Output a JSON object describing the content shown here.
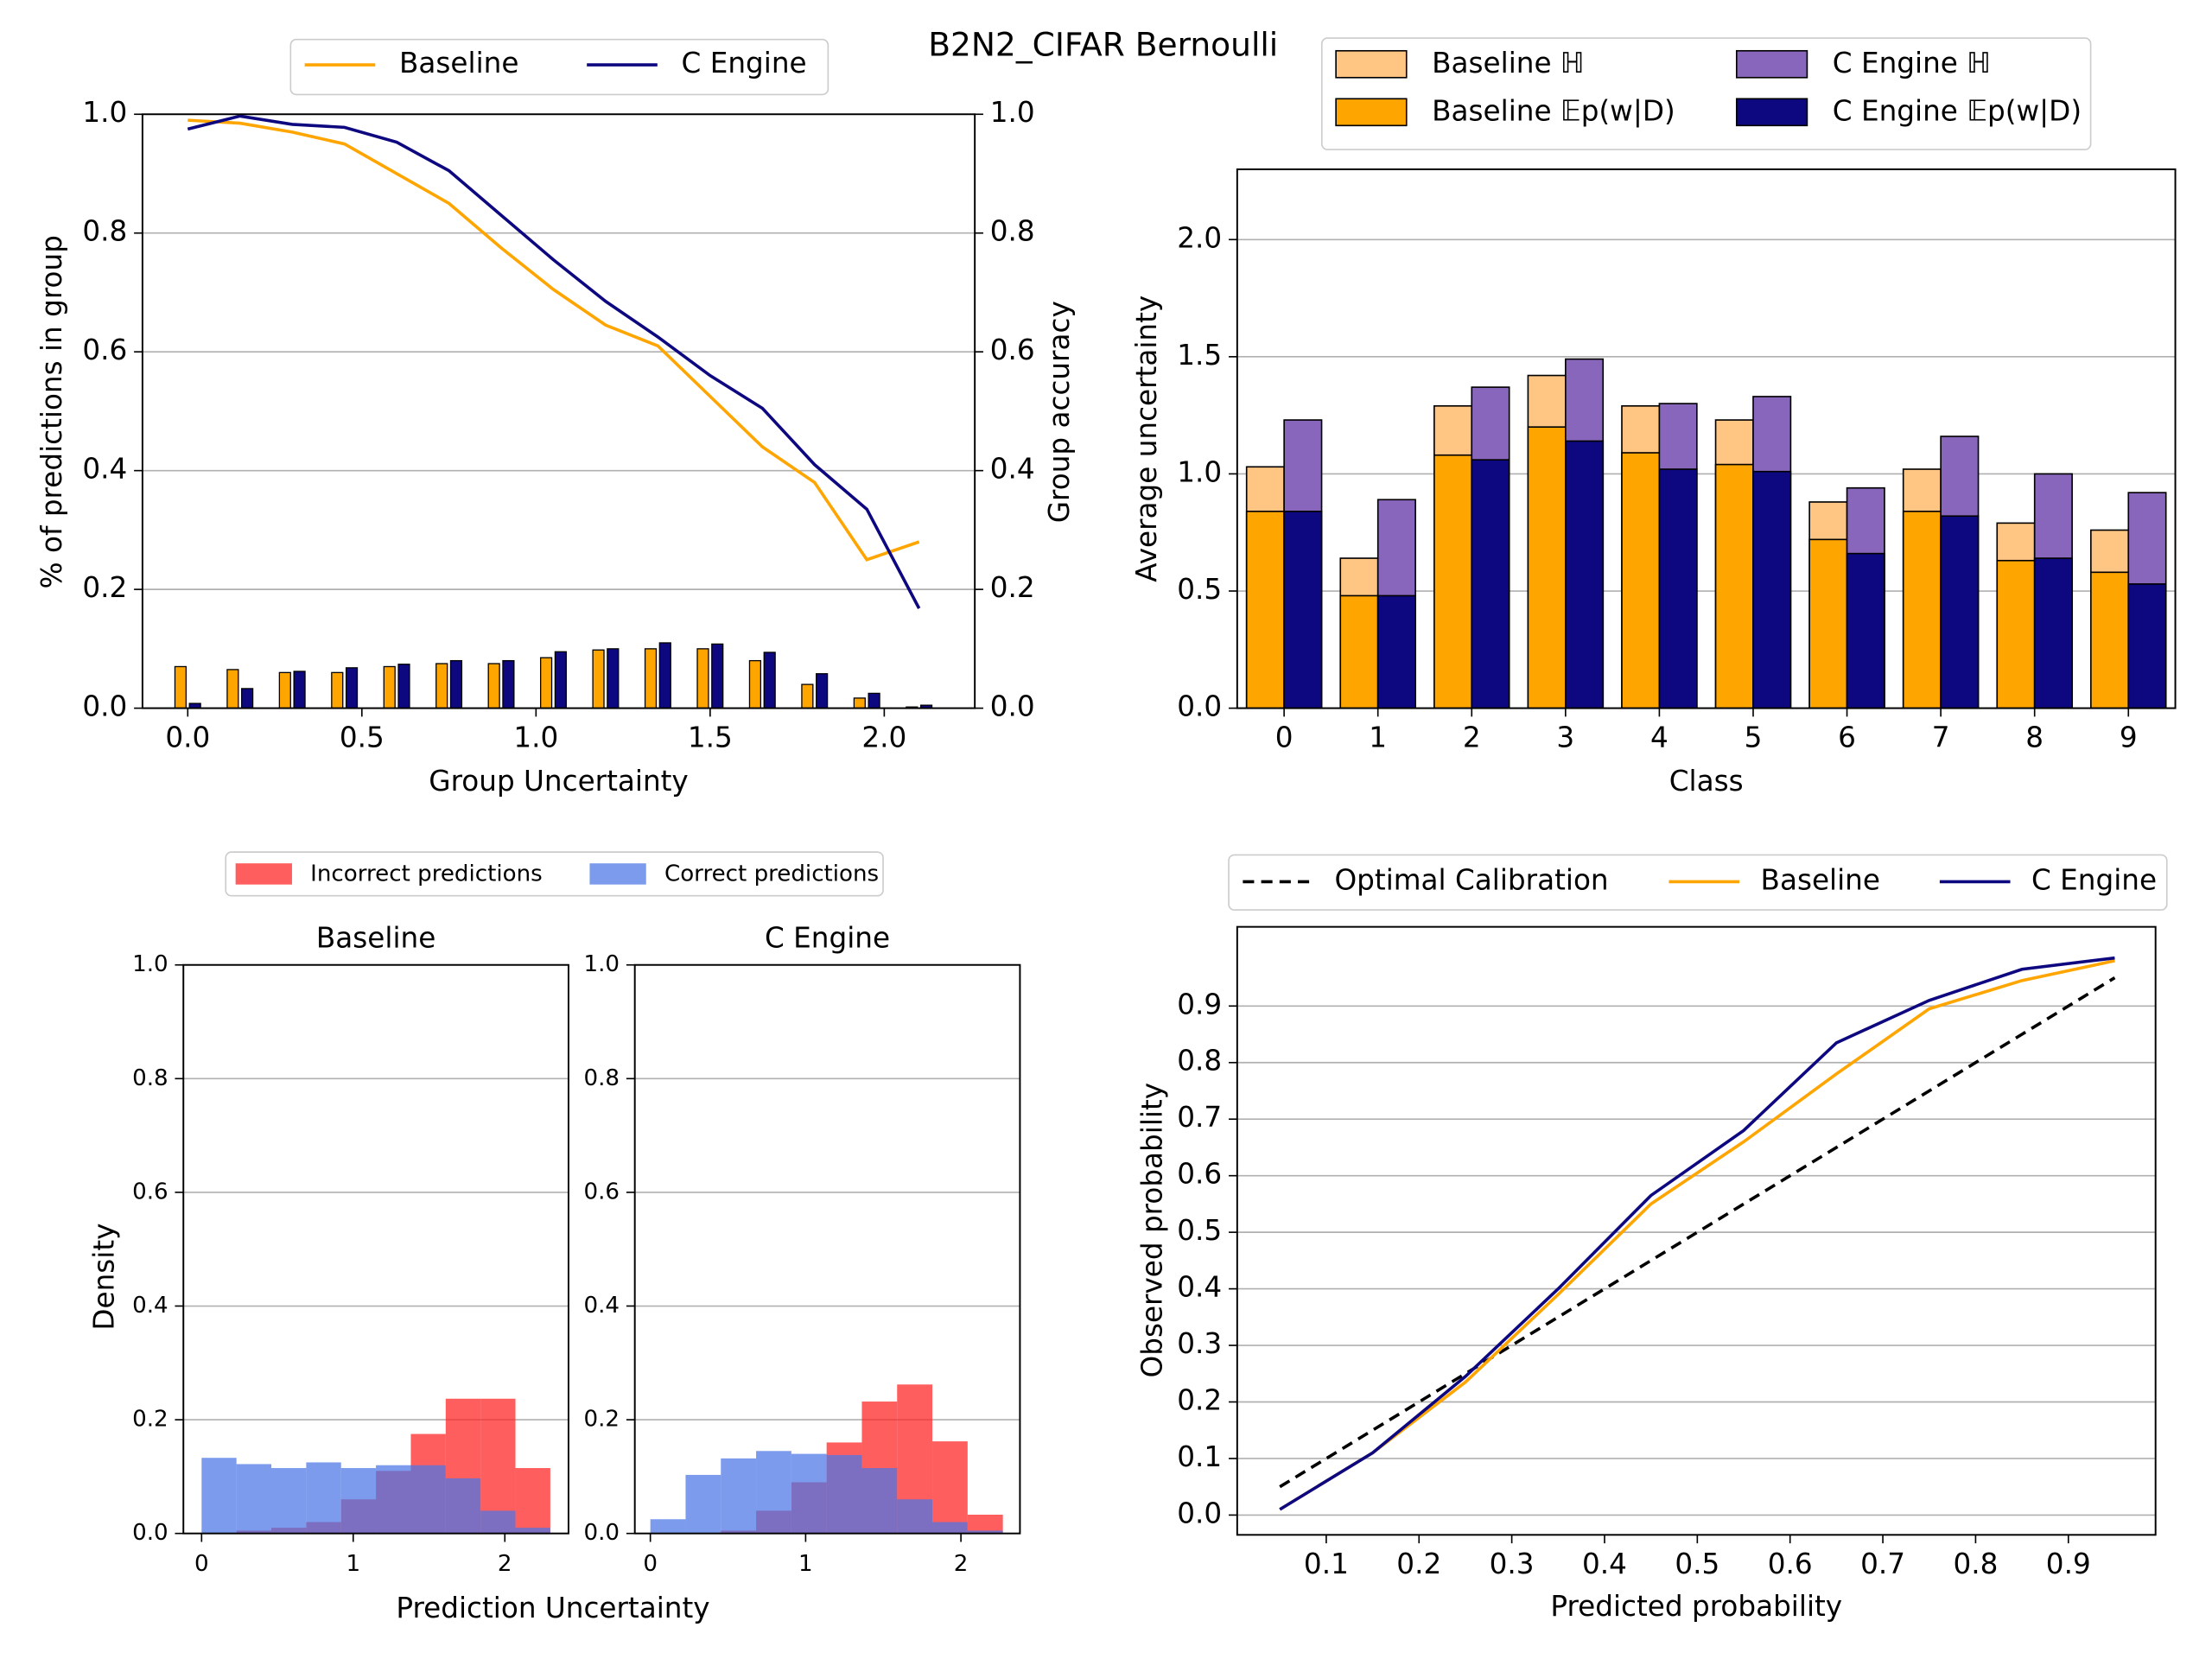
{
  "title": "B2N2_CIFAR Bernoulli",
  "chart_data": [
    {
      "type": "line-bar",
      "xlabel": "Group Uncertainty",
      "ylabel": "% of predictions in group",
      "y2label": "Group accuracy",
      "x": [
        0,
        0.15,
        0.3,
        0.45,
        0.6,
        0.75,
        0.9,
        1.05,
        1.2,
        1.35,
        1.5,
        1.65,
        1.8,
        1.95,
        2.1
      ],
      "xlim": [
        -0.13,
        2.26
      ],
      "xticks": [
        {
          "value": 0,
          "label": "0.0"
        },
        0.5,
        {
          "value": 1,
          "label": "1.0"
        },
        1.5,
        {
          "value": 2,
          "label": "2.0"
        }
      ],
      "ylim": [
        0,
        1
      ],
      "yticks": [
        {
          "value": 0,
          "label": "0.0"
        },
        0.2,
        0.4,
        0.6,
        0.8,
        {
          "value": 1,
          "label": "1.0"
        }
      ],
      "y2lim": [
        0,
        1
      ],
      "y2ticks": [
        {
          "value": 0,
          "label": "0.0"
        },
        0.2,
        0.4,
        0.6,
        0.8,
        {
          "value": 1,
          "label": "1.0"
        }
      ],
      "grid": true,
      "legend": "upper center",
      "series": [
        {
          "name": "Baseline",
          "kind": "line",
          "axis": "y2",
          "color": "#ffa500",
          "values": [
            0.99,
            0.985,
            0.97,
            0.95,
            0.9,
            0.85,
            0.775,
            0.705,
            0.645,
            0.61,
            0.525,
            0.44,
            0.38,
            0.25,
            0.28
          ]
        },
        {
          "name": "C Engine",
          "kind": "line",
          "axis": "y2",
          "color": "#0e0880",
          "values": [
            0.975,
            0.997,
            0.983,
            0.978,
            0.953,
            0.905,
            0.83,
            0.755,
            0.685,
            0.625,
            0.56,
            0.505,
            0.41,
            0.335,
            0.168
          ]
        },
        {
          "name": "Baseline",
          "kind": "bar",
          "color": "#ffa500",
          "values": [
            0.07,
            0.065,
            0.06,
            0.06,
            0.07,
            0.075,
            0.075,
            0.085,
            0.098,
            0.1,
            0.1,
            0.08,
            0.04,
            0.017,
            0.002
          ]
        },
        {
          "name": "C Engine",
          "kind": "bar",
          "color": "#0e0880",
          "values": [
            0.008,
            0.033,
            0.062,
            0.068,
            0.074,
            0.08,
            0.08,
            0.095,
            0.1,
            0.11,
            0.108,
            0.094,
            0.058,
            0.025,
            0.005
          ]
        }
      ]
    },
    {
      "type": "overlay-bar",
      "xlabel": "Class",
      "ylabel": "Average uncertainty",
      "categories": [
        "0",
        "1",
        "2",
        "3",
        "4",
        "5",
        "6",
        "7",
        "8",
        "9"
      ],
      "ylim": [
        0,
        2.3
      ],
      "yticks": [
        {
          "value": 0,
          "label": "0.0"
        },
        0.5,
        {
          "value": 1,
          "label": "1.0"
        },
        1.5,
        {
          "value": 2,
          "label": "2.0"
        }
      ],
      "grid": true,
      "legend": "upper right",
      "series": [
        {
          "name": "Baseline ℍ",
          "group": 0,
          "color": "#ffc583",
          "values": [
            1.03,
            0.64,
            1.29,
            1.42,
            1.29,
            1.23,
            0.88,
            1.02,
            0.79,
            0.76
          ]
        },
        {
          "name": "Baseline 𝔼p(w|D)",
          "group": 0,
          "color": "#ffa500",
          "values": [
            0.84,
            0.48,
            1.08,
            1.2,
            1.09,
            1.04,
            0.72,
            0.84,
            0.63,
            0.58
          ]
        },
        {
          "name": "C Engine ℍ",
          "group": 1,
          "color": "#8866bb",
          "values": [
            1.23,
            0.89,
            1.37,
            1.49,
            1.3,
            1.33,
            0.94,
            1.16,
            1.0,
            0.92
          ]
        },
        {
          "name": "C Engine 𝔼p(w|D)",
          "group": 1,
          "color": "#0e0880",
          "values": [
            0.84,
            0.48,
            1.06,
            1.14,
            1.02,
            1.01,
            0.66,
            0.82,
            0.64,
            0.53
          ]
        }
      ]
    },
    {
      "type": "histogram",
      "xlabel": "Prediction Uncertainty",
      "ylabel": "Density",
      "alpha": 0.72,
      "grid": true,
      "legend": "upper center",
      "series": [
        {
          "name": "Incorrect predictions",
          "color": "#ff2020"
        },
        {
          "name": "Correct predictions",
          "color": "#4a74e6"
        }
      ],
      "ylim": [
        0,
        1
      ],
      "yticks": [
        {
          "value": 0,
          "label": "0.0"
        },
        0.2,
        0.4,
        0.6,
        0.8,
        {
          "value": 1,
          "label": "1.0"
        }
      ],
      "panels": [
        {
          "title": "Baseline",
          "xlim": [
            -0.12,
            2.42
          ],
          "xticks": [
            0,
            1,
            2
          ],
          "bins": [
            0,
            0.23,
            0.46,
            0.69,
            0.92,
            1.15,
            1.38,
            1.61,
            1.84,
            2.07,
            2.3
          ],
          "values": [
            [
              0,
              0.005,
              0.01,
              0.02,
              0.06,
              0.11,
              0.175,
              0.237,
              0.237,
              0.115,
              0.018
            ],
            [
              0.133,
              0.122,
              0.115,
              0.125,
              0.115,
              0.12,
              0.12,
              0.097,
              0.04,
              0.01,
              0
            ]
          ]
        },
        {
          "title": "C Engine",
          "xlim": [
            -0.1,
            2.38
          ],
          "xticks": [
            0,
            1,
            2
          ],
          "bins": [
            0,
            0.227,
            0.454,
            0.681,
            0.908,
            1.135,
            1.362,
            1.589,
            1.816,
            2.043,
            2.27
          ],
          "values": [
            [
              0,
              0,
              0.005,
              0.04,
              0.09,
              0.16,
              0.232,
              0.262,
              0.162,
              0.033
            ],
            [
              0.025,
              0.103,
              0.132,
              0.145,
              0.14,
              0.138,
              0.115,
              0.06,
              0.02,
              0.005
            ]
          ]
        }
      ]
    },
    {
      "type": "line",
      "xlabel": "Predicted probability",
      "ylabel": "Observed probability",
      "x": [
        0.05,
        0.15,
        0.25,
        0.35,
        0.45,
        0.55,
        0.65,
        0.75,
        0.85,
        0.95
      ],
      "xlim": [
        0.004,
        0.994
      ],
      "xticks": [
        0.1,
        0.2,
        0.3,
        0.4,
        0.5,
        0.6,
        0.7,
        0.8,
        0.9
      ],
      "ylim": [
        -0.035,
        1.04
      ],
      "yticks": [
        {
          "value": 0,
          "label": "0.0"
        },
        0.1,
        0.2,
        0.3,
        0.4,
        0.5,
        0.6,
        0.7,
        0.8,
        0.9
      ],
      "grid": true,
      "legend": "upper center",
      "series": [
        {
          "name": "Optimal Calibration",
          "color": "#000000",
          "dashed": true,
          "values": [
            0.05,
            0.15,
            0.25,
            0.35,
            0.45,
            0.55,
            0.65,
            0.75,
            0.85,
            0.95
          ]
        },
        {
          "name": "Baseline",
          "color": "#ffa500",
          "values": [
            0.01,
            0.11,
            0.235,
            0.39,
            0.55,
            0.66,
            0.78,
            0.895,
            0.945,
            0.98
          ]
        },
        {
          "name": "C Engine",
          "color": "#0e0880",
          "values": [
            0.01,
            0.11,
            0.245,
            0.4,
            0.565,
            0.68,
            0.835,
            0.91,
            0.965,
            0.985
          ]
        }
      ]
    }
  ]
}
